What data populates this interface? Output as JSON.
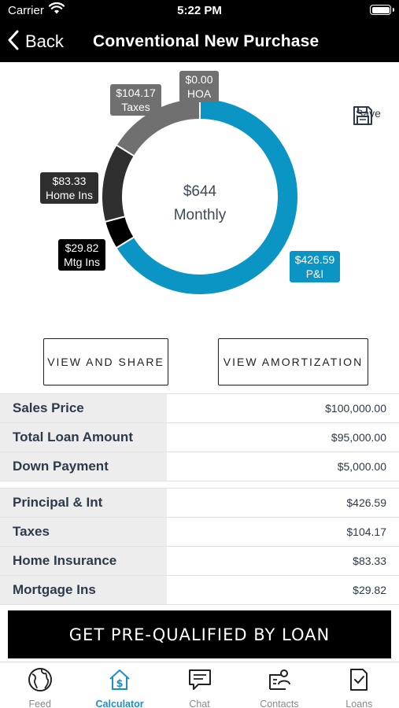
{
  "status_bar": {
    "carrier": "Carrier",
    "time": "5:22 PM"
  },
  "nav": {
    "back_label": "Back",
    "title": "Conventional New Purchase"
  },
  "chart_data": {
    "type": "pie",
    "center_amount": "$644",
    "center_label": "Monthly",
    "slices": [
      {
        "label": "P&I",
        "amount": "$426.59",
        "value": 426.59,
        "color": "#0a95c4"
      },
      {
        "label": "Mtg Ins",
        "amount": "$29.82",
        "value": 29.82,
        "color": "#000000"
      },
      {
        "label": "Home Ins",
        "amount": "$83.33",
        "value": 83.33,
        "color": "#2f2f2f"
      },
      {
        "label": "Taxes",
        "amount": "$104.17",
        "value": 104.17,
        "color": "#707070"
      },
      {
        "label": "HOA",
        "amount": "$0.00",
        "value": 0.0,
        "color": "#707070"
      }
    ]
  },
  "save": {
    "label": "Save"
  },
  "buttons": {
    "view_share": "VIEW AND SHARE",
    "view_amortization": "VIEW AMORTIZATION"
  },
  "loan_summary": [
    {
      "label": "Sales Price",
      "value": "$100,000.00"
    },
    {
      "label": "Total Loan Amount",
      "value": "$95,000.00"
    },
    {
      "label": "Down Payment",
      "value": "$5,000.00"
    }
  ],
  "payment_breakdown": [
    {
      "label": "Principal & Int",
      "value": "$426.59"
    },
    {
      "label": "Taxes",
      "value": "$104.17"
    },
    {
      "label": "Home Insurance",
      "value": "$83.33"
    },
    {
      "label": "Mortgage Ins",
      "value": "$29.82"
    }
  ],
  "cta": {
    "label": "GET PRE-QUALIFIED BY LOAN"
  },
  "tabs": [
    {
      "label": "Feed",
      "icon": "globe-icon",
      "active": false
    },
    {
      "label": "Calculator",
      "icon": "calculator-house-icon",
      "active": true
    },
    {
      "label": "Chat",
      "icon": "chat-icon",
      "active": false
    },
    {
      "label": "Contacts",
      "icon": "contacts-icon",
      "active": false
    },
    {
      "label": "Loans",
      "icon": "loans-document-icon",
      "active": false
    }
  ]
}
